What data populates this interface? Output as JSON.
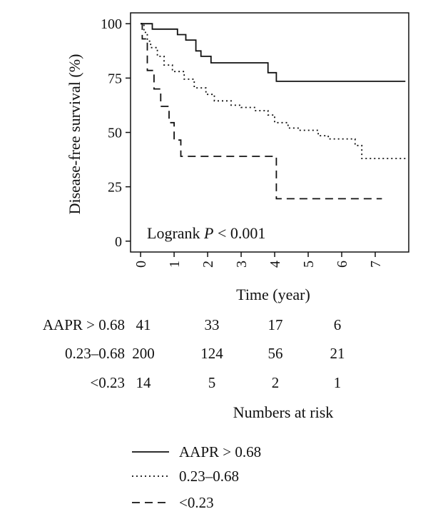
{
  "chart_data": {
    "type": "line",
    "subtype": "kaplan-meier step",
    "ylabel": "Disease-free survival (%)",
    "xlabel": "Time (year)",
    "xlim": [
      -0.3,
      8.0
    ],
    "ylim": [
      -5,
      105
    ],
    "x_ticks": [
      0,
      1,
      2,
      3,
      4,
      5,
      6,
      7
    ],
    "y_ticks": [
      0,
      25,
      50,
      75,
      100
    ],
    "annotation": {
      "prefix": "Logrank ",
      "italic": "P",
      "suffix": " < 0.001"
    },
    "series": [
      {
        "name": "AAPR > 0.68",
        "style": "solid",
        "points": [
          [
            0,
            100
          ],
          [
            0.35,
            97.5
          ],
          [
            1.1,
            95
          ],
          [
            1.35,
            92.5
          ],
          [
            1.65,
            87.5
          ],
          [
            1.8,
            85
          ],
          [
            2.1,
            82
          ],
          [
            3.8,
            77.5
          ],
          [
            4.05,
            73.5
          ],
          [
            7.9,
            73.5
          ]
        ]
      },
      {
        "name": "0.23–0.68",
        "style": "dotted",
        "points": [
          [
            0,
            100
          ],
          [
            0.1,
            96
          ],
          [
            0.2,
            92
          ],
          [
            0.3,
            89
          ],
          [
            0.5,
            85
          ],
          [
            0.7,
            81
          ],
          [
            0.95,
            78
          ],
          [
            1.3,
            74.5
          ],
          [
            1.6,
            70.5
          ],
          [
            1.95,
            67.5
          ],
          [
            2.2,
            64.5
          ],
          [
            2.7,
            62.5
          ],
          [
            3.0,
            61.5
          ],
          [
            3.4,
            60
          ],
          [
            3.8,
            58
          ],
          [
            4.0,
            54.5
          ],
          [
            4.4,
            52
          ],
          [
            4.7,
            51
          ],
          [
            5.3,
            48.5
          ],
          [
            5.6,
            47
          ],
          [
            6.4,
            44
          ],
          [
            6.6,
            38
          ],
          [
            7.9,
            38
          ]
        ]
      },
      {
        "name": "<0.23",
        "style": "dashed",
        "points": [
          [
            0,
            100
          ],
          [
            0.05,
            93
          ],
          [
            0.2,
            78.5
          ],
          [
            0.4,
            70
          ],
          [
            0.6,
            62
          ],
          [
            0.85,
            54.5
          ],
          [
            1.0,
            46.5
          ],
          [
            1.2,
            39
          ],
          [
            3.95,
            39
          ],
          [
            4.05,
            19.5
          ],
          [
            7.2,
            19.5
          ]
        ]
      }
    ]
  },
  "risk_table": {
    "title": "Numbers at risk",
    "rows": [
      {
        "label": "AAPR > 0.68",
        "values": [
          "41",
          "33",
          "17",
          "6"
        ]
      },
      {
        "label": "0.23–0.68",
        "values": [
          "200",
          "124",
          "56",
          "21"
        ]
      },
      {
        "label": "<0.23",
        "values": [
          "14",
          "5",
          "2",
          "1"
        ]
      }
    ]
  },
  "legend": [
    {
      "label": "AAPR > 0.68",
      "style": "solid"
    },
    {
      "label": "0.23–0.68",
      "style": "dotted"
    },
    {
      "label": "<0.23",
      "style": "dashed"
    }
  ],
  "colors": {
    "line": "#111111",
    "background": "#ffffff"
  }
}
